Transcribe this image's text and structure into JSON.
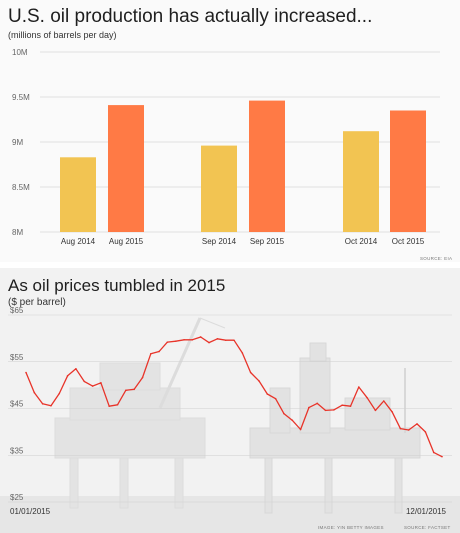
{
  "top": {
    "title": "U.S. oil production has actually increased...",
    "subtitle": "(millions of barrels per day)",
    "credit": "SOURCE: EIA"
  },
  "bottom": {
    "title": "As oil prices tumbled in 2015",
    "subtitle": "($ per barrel)",
    "credit_image": "IMAGE: YIN BETTY IMAGES",
    "credit_source": "SOURCE: FACTSET",
    "x_start": "01/01/2015",
    "x_end": "12/01/2015"
  },
  "colors": {
    "bar_2014": "#f2c452",
    "bar_2015": "#ff7a45",
    "line": "#e8342a"
  },
  "chart_data": [
    {
      "type": "bar",
      "title": "U.S. oil production has actually increased...",
      "ylabel": "(millions of barrels per day)",
      "ylim": [
        8,
        10
      ],
      "yticks": [
        "8M",
        "8.5M",
        "9M",
        "9.5M",
        "10M"
      ],
      "categories": [
        "Aug 2014",
        "Aug 2015",
        "Sep 2014",
        "Sep 2015",
        "Oct 2014",
        "Oct 2015"
      ],
      "values": [
        8.83,
        9.41,
        8.96,
        9.46,
        9.12,
        9.35
      ],
      "grid": true
    },
    {
      "type": "line",
      "title": "As oil prices tumbled in 2015",
      "ylabel": "($ per barrel)",
      "ylim": [
        25,
        65
      ],
      "yticks": [
        "$25",
        "$35",
        "$45",
        "$55",
        "$65"
      ],
      "xlabels": [
        "01/01/2015",
        "12/01/2015"
      ],
      "series": [
        {
          "x": [
            "2015-01-02",
            "2015-01-09",
            "2015-01-16",
            "2015-01-23",
            "2015-01-30",
            "2015-02-06",
            "2015-02-13",
            "2015-02-20",
            "2015-02-27",
            "2015-03-06",
            "2015-03-13",
            "2015-03-20",
            "2015-03-27",
            "2015-04-03",
            "2015-04-10",
            "2015-04-17",
            "2015-04-24",
            "2015-05-01",
            "2015-05-08",
            "2015-05-15",
            "2015-05-22",
            "2015-05-29",
            "2015-06-05",
            "2015-06-12",
            "2015-06-19",
            "2015-06-26",
            "2015-07-03",
            "2015-07-10",
            "2015-07-17",
            "2015-07-24",
            "2015-07-31",
            "2015-08-07",
            "2015-08-14",
            "2015-08-21",
            "2015-08-28",
            "2015-09-04",
            "2015-09-11",
            "2015-09-18",
            "2015-09-25",
            "2015-10-02",
            "2015-10-09",
            "2015-10-16",
            "2015-10-23",
            "2015-10-30",
            "2015-11-06",
            "2015-11-13",
            "2015-11-20",
            "2015-11-27",
            "2015-12-04",
            "2015-12-11",
            "2015-12-18"
          ],
          "values": [
            52.7,
            48.4,
            46.0,
            45.6,
            48.2,
            52.0,
            53.5,
            50.8,
            49.8,
            50.5,
            45.5,
            45.8,
            48.9,
            49.1,
            51.6,
            56.7,
            57.2,
            59.2,
            59.4,
            59.7,
            59.7,
            60.3,
            59.1,
            59.9,
            59.6,
            59.6,
            56.9,
            52.7,
            50.9,
            48.1,
            47.1,
            43.9,
            42.5,
            40.5,
            45.2,
            46.1,
            44.6,
            44.7,
            45.7,
            45.5,
            49.6,
            47.3,
            44.6,
            46.6,
            44.3,
            40.7,
            40.4,
            41.7,
            40.0,
            35.6,
            34.7
          ]
        }
      ],
      "grid": true
    }
  ]
}
